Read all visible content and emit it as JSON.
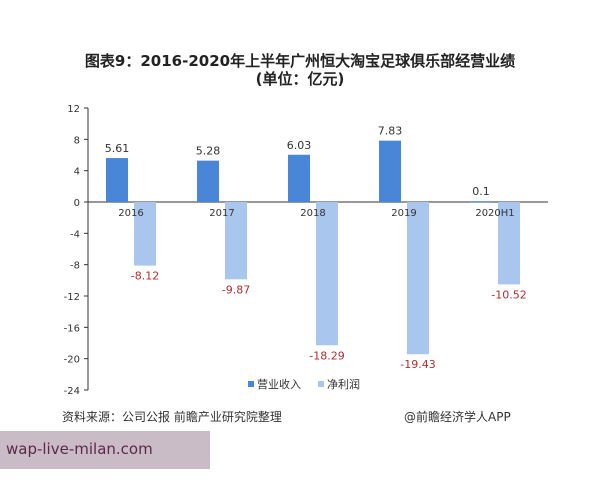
{
  "title_line1": "图表9：2016-2020年上半年广州恒大淘宝足球俱乐部经营业绩",
  "title_line2": "(单位：亿元)",
  "source": "资料来源：公司公报 前瞻产业研究院整理",
  "credit": "@前瞻经济学人APP",
  "watermark_banner": "wap-live-milan.com",
  "chart_data": {
    "type": "bar",
    "categories": [
      "2016",
      "2017",
      "2018",
      "2019",
      "2020H1"
    ],
    "series": [
      {
        "name": "营业收入",
        "values": [
          5.61,
          5.28,
          6.03,
          7.83,
          0.1
        ],
        "labels": [
          "5.61",
          "5.28",
          "6.03",
          "7.83",
          "0.1"
        ],
        "color": "#4a86d8"
      },
      {
        "name": "净利润",
        "values": [
          -8.12,
          -9.87,
          -18.29,
          -19.43,
          -10.52
        ],
        "labels": [
          "-8.12",
          "-9.87",
          "-18.29",
          "-19.43",
          "-10.52"
        ],
        "color": "#a9c6ef"
      }
    ],
    "ylim": [
      -24,
      12
    ],
    "yticks": [
      12,
      8,
      4,
      0,
      -4,
      -8,
      -12,
      -16,
      -20,
      -24
    ],
    "legend": "bottom",
    "grid": false,
    "negative_label_color": "#b03030"
  }
}
